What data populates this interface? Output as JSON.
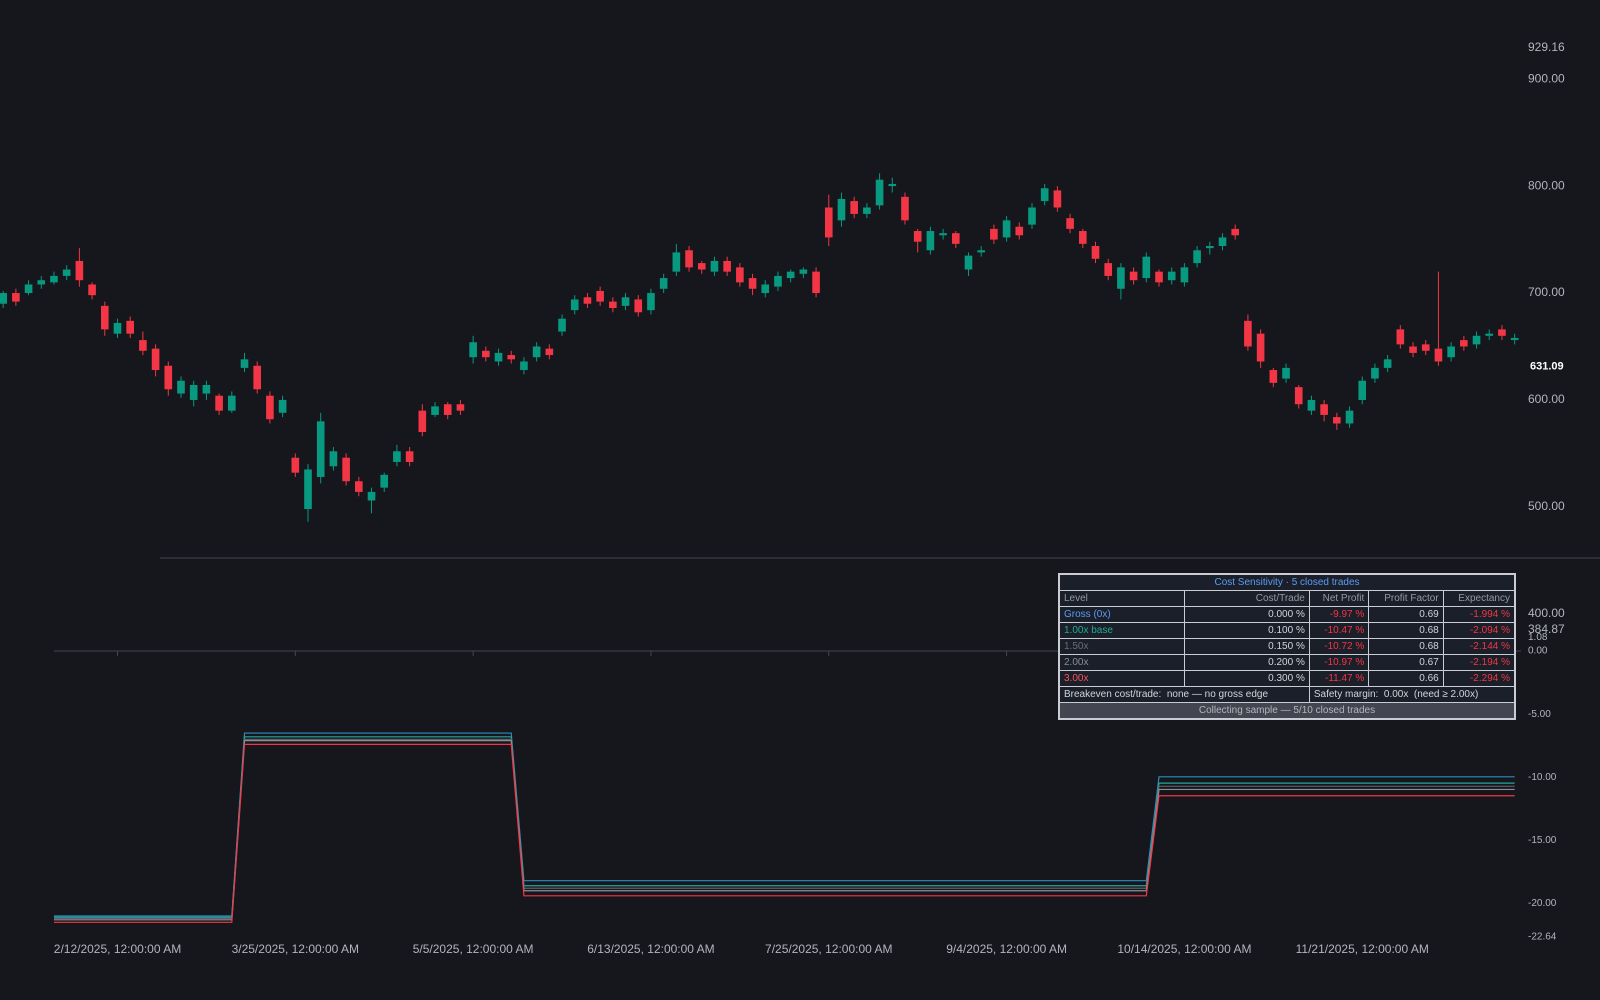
{
  "chart_data": [
    {
      "type": "candlestick",
      "ylim": [
        384.87,
        929.16
      ],
      "yticks": [
        929.16,
        {
          "value": 900,
          "label": "900.00"
        },
        {
          "value": 800,
          "label": "800.00"
        },
        {
          "value": 700,
          "label": "700.00"
        },
        {
          "value": 600,
          "label": "600.00"
        },
        {
          "value": 500,
          "label": "500.00"
        },
        {
          "value": 400,
          "label": "400.00"
        },
        384.87
      ],
      "last_price": 631.09,
      "up_color": "#089981",
      "down_color": "#f23645",
      "ohlc": [
        [
          690,
          702,
          686,
          700
        ],
        [
          700,
          704,
          688,
          692
        ],
        [
          700,
          712,
          698,
          708
        ],
        [
          708,
          716,
          704,
          712
        ],
        [
          710,
          720,
          708,
          716
        ],
        [
          716,
          726,
          712,
          722
        ],
        [
          730,
          742,
          706,
          712
        ],
        [
          708,
          710,
          694,
          698
        ],
        [
          688,
          692,
          660,
          666
        ],
        [
          662,
          676,
          658,
          672
        ],
        [
          674,
          678,
          658,
          662
        ],
        [
          656,
          664,
          642,
          646
        ],
        [
          648,
          652,
          622,
          628
        ],
        [
          632,
          636,
          604,
          610
        ],
        [
          606,
          622,
          602,
          618
        ],
        [
          600,
          618,
          594,
          614
        ],
        [
          606,
          618,
          600,
          614
        ],
        [
          604,
          606,
          586,
          590
        ],
        [
          590,
          608,
          588,
          604
        ],
        [
          630,
          644,
          626,
          638
        ],
        [
          632,
          636,
          606,
          610
        ],
        [
          604,
          608,
          578,
          582
        ],
        [
          588,
          604,
          584,
          600
        ],
        [
          546,
          550,
          528,
          532
        ],
        [
          498,
          540,
          486,
          535
        ],
        [
          528,
          588,
          522,
          580
        ],
        [
          538,
          556,
          534,
          552
        ],
        [
          546,
          550,
          520,
          524
        ],
        [
          524,
          528,
          510,
          514
        ],
        [
          506,
          518,
          494,
          514
        ],
        [
          518,
          532,
          514,
          530
        ],
        [
          542,
          558,
          538,
          552
        ],
        [
          552,
          556,
          538,
          542
        ],
        [
          590,
          596,
          566,
          570
        ],
        [
          586,
          598,
          584,
          594
        ],
        [
          596,
          598,
          582,
          586
        ],
        [
          596,
          600,
          586,
          590
        ],
        [
          640,
          660,
          634,
          654
        ],
        [
          646,
          650,
          636,
          640
        ],
        [
          636,
          648,
          632,
          644
        ],
        [
          642,
          646,
          634,
          638
        ],
        [
          628,
          640,
          624,
          636
        ],
        [
          640,
          654,
          636,
          650
        ],
        [
          648,
          652,
          638,
          642
        ],
        [
          664,
          680,
          660,
          676
        ],
        [
          684,
          698,
          680,
          694
        ],
        [
          696,
          700,
          686,
          690
        ],
        [
          702,
          706,
          688,
          692
        ],
        [
          692,
          696,
          682,
          686
        ],
        [
          688,
          700,
          684,
          696
        ],
        [
          694,
          698,
          678,
          682
        ],
        [
          684,
          704,
          680,
          700
        ],
        [
          704,
          718,
          700,
          714
        ],
        [
          720,
          746,
          716,
          738
        ],
        [
          740,
          744,
          720,
          724
        ],
        [
          728,
          730,
          718,
          722
        ],
        [
          720,
          734,
          716,
          730
        ],
        [
          730,
          734,
          716,
          720
        ],
        [
          724,
          728,
          706,
          710
        ],
        [
          714,
          718,
          698,
          704
        ],
        [
          700,
          712,
          696,
          708
        ],
        [
          706,
          720,
          702,
          716
        ],
        [
          714,
          722,
          710,
          720
        ],
        [
          718,
          724,
          714,
          722
        ],
        [
          720,
          724,
          696,
          700
        ],
        [
          780,
          792,
          744,
          752
        ],
        [
          768,
          794,
          762,
          788
        ],
        [
          786,
          790,
          770,
          774
        ],
        [
          774,
          784,
          770,
          780
        ],
        [
          782,
          812,
          778,
          806
        ],
        [
          800,
          808,
          794,
          802
        ],
        [
          790,
          794,
          764,
          768
        ],
        [
          758,
          760,
          738,
          748
        ],
        [
          740,
          762,
          736,
          758
        ],
        [
          754,
          760,
          750,
          756
        ],
        [
          756,
          758,
          742,
          746
        ],
        [
          722,
          738,
          716,
          735
        ],
        [
          738,
          744,
          734,
          740
        ],
        [
          760,
          764,
          746,
          750
        ],
        [
          752,
          772,
          748,
          768
        ],
        [
          762,
          766,
          750,
          754
        ],
        [
          764,
          784,
          760,
          780
        ],
        [
          786,
          802,
          782,
          798
        ],
        [
          796,
          800,
          776,
          780
        ],
        [
          770,
          774,
          756,
          760
        ],
        [
          758,
          760,
          742,
          746
        ],
        [
          744,
          748,
          728,
          732
        ],
        [
          728,
          732,
          712,
          716
        ],
        [
          704,
          728,
          694,
          724
        ],
        [
          720,
          724,
          708,
          712
        ],
        [
          714,
          738,
          710,
          734
        ],
        [
          720,
          722,
          706,
          710
        ],
        [
          712,
          724,
          708,
          720
        ],
        [
          710,
          728,
          706,
          724
        ],
        [
          728,
          744,
          724,
          740
        ],
        [
          742,
          748,
          736,
          744
        ],
        [
          744,
          756,
          740,
          752
        ],
        [
          760,
          764,
          750,
          754
        ],
        [
          674,
          680,
          646,
          650
        ],
        [
          662,
          666,
          630,
          636
        ],
        [
          628,
          630,
          612,
          616
        ],
        [
          620,
          634,
          616,
          630
        ],
        [
          612,
          614,
          592,
          596
        ],
        [
          590,
          604,
          586,
          600
        ],
        [
          596,
          600,
          580,
          586
        ],
        [
          584,
          588,
          572,
          578
        ],
        [
          578,
          594,
          574,
          590
        ],
        [
          600,
          622,
          596,
          618
        ],
        [
          620,
          634,
          616,
          630
        ],
        [
          630,
          642,
          626,
          638
        ],
        [
          666,
          670,
          648,
          652
        ],
        [
          650,
          654,
          640,
          644
        ],
        [
          652,
          656,
          642,
          646
        ],
        [
          648,
          720,
          632,
          636
        ],
        [
          640,
          654,
          636,
          650
        ],
        [
          656,
          660,
          646,
          650
        ],
        [
          652,
          664,
          648,
          660
        ],
        [
          660,
          666,
          656,
          662
        ],
        [
          666,
          670,
          656,
          660
        ],
        [
          656,
          662,
          652,
          658
        ]
      ]
    },
    {
      "type": "line",
      "ylim": [
        -22.64,
        1.08
      ],
      "yticks": [
        1.08,
        {
          "value": 0,
          "label": "0.00"
        },
        {
          "value": -5,
          "label": "-5.00"
        },
        {
          "value": -10,
          "label": "-10.00"
        },
        {
          "value": -15,
          "label": "-15.00"
        },
        {
          "value": -20,
          "label": "-20.00"
        },
        -22.64
      ],
      "xlim": [
        -0.25,
        119.5
      ],
      "xticks": [
        {
          "value": 9,
          "label": "2/12/2025, 12:00:00 AM"
        },
        {
          "value": 23,
          "label": "3/25/2025, 12:00:00 AM"
        },
        {
          "value": 37,
          "label": "5/5/2025, 12:00:00 AM"
        },
        {
          "value": 51,
          "label": "6/13/2025, 12:00:00 AM"
        },
        {
          "value": 65,
          "label": "7/25/2025, 12:00:00 AM"
        },
        {
          "value": 79,
          "label": "9/4/2025, 12:00:00 AM"
        },
        {
          "value": 93,
          "label": "10/14/2025, 12:00:00 AM"
        },
        {
          "value": 107,
          "label": "11/21/2025, 12:00:00 AM"
        }
      ],
      "x": [
        4,
        18,
        19,
        40,
        41,
        90,
        91,
        119
      ],
      "series": [
        {
          "color": "#2e8bc0",
          "values": [
            -21.0,
            -21.0,
            -6.5,
            -6.5,
            -18.2,
            -18.2,
            -9.97,
            -9.97
          ]
        },
        {
          "color": "#26a69a",
          "values": [
            -21.1,
            -21.1,
            -6.8,
            -6.8,
            -18.6,
            -18.6,
            -10.47,
            -10.47
          ]
        },
        {
          "color": "#5d606b",
          "values": [
            -21.2,
            -21.2,
            -7.0,
            -7.0,
            -18.8,
            -18.8,
            -10.72,
            -10.72
          ]
        },
        {
          "color": "#8d8f96",
          "values": [
            -21.3,
            -21.3,
            -7.1,
            -7.1,
            -19.0,
            -19.0,
            -10.97,
            -10.97
          ]
        },
        {
          "color": "#f23645",
          "values": [
            -21.5,
            -21.5,
            -7.4,
            -7.4,
            -19.4,
            -19.4,
            -11.47,
            -11.47
          ]
        }
      ]
    }
  ],
  "table": {
    "title": "Cost Sensitivity · 5 closed trades",
    "columns": [
      "Level",
      "Cost/Trade",
      "Net Profit",
      "Profit Factor",
      "Expectancy"
    ],
    "rows": [
      [
        "Gross (0x)",
        "0.000 %",
        "-9.97 %",
        "0.69",
        "-1.994 %"
      ],
      [
        "1.00x base",
        "0.100 %",
        "-10.47 %",
        "0.68",
        "-2.094 %"
      ],
      [
        "1.50x",
        "0.150 %",
        "-10.72 %",
        "0.68",
        "-2.144 %"
      ],
      [
        "2.00x",
        "0.200 %",
        "-10.97 %",
        "0.67",
        "-2.194 %"
      ],
      [
        "3.00x",
        "0.300 %",
        "-11.47 %",
        "0.66",
        "-2.294 %"
      ]
    ],
    "level_colors": [
      "#5b9cf6",
      "#22ab94",
      "#6a6d78",
      "#8a8d96",
      "#f7525f"
    ],
    "footer": [
      "Breakeven cost/trade:  none — no gross edge",
      "Safety margin:  0.00x  (need ≥ 2.00x)"
    ],
    "status": "Collecting sample — 5/10 closed trades"
  }
}
